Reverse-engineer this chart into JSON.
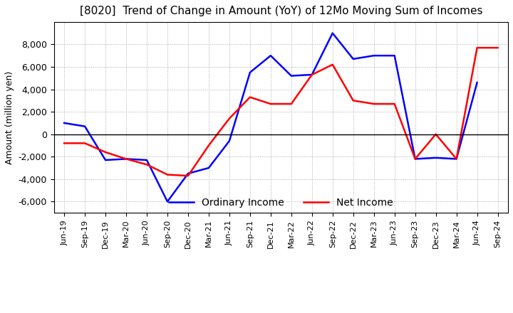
{
  "title": "[8020]  Trend of Change in Amount (YoY) of 12Mo Moving Sum of Incomes",
  "ylabel": "Amount (million yen)",
  "ylim": [
    -7000,
    10000
  ],
  "yticks": [
    -6000,
    -4000,
    -2000,
    0,
    2000,
    4000,
    6000,
    8000
  ],
  "x_labels": [
    "Jun-19",
    "Sep-19",
    "Dec-19",
    "Mar-20",
    "Jun-20",
    "Sep-20",
    "Dec-20",
    "Mar-21",
    "Jun-21",
    "Sep-21",
    "Dec-21",
    "Mar-22",
    "Jun-22",
    "Sep-22",
    "Dec-22",
    "Mar-23",
    "Jun-23",
    "Sep-23",
    "Dec-23",
    "Mar-24",
    "Jun-24",
    "Sep-24"
  ],
  "ordinary_income": [
    1000,
    700,
    -2300,
    -2200,
    -2300,
    -6000,
    -3500,
    -3000,
    -600,
    5500,
    7000,
    5200,
    5300,
    9000,
    6700,
    7000,
    7000,
    -2200,
    -2100,
    -2200,
    4600,
    null
  ],
  "net_income": [
    -800,
    -800,
    -1600,
    -2200,
    -2700,
    -3600,
    -3700,
    -1000,
    1400,
    3300,
    2700,
    2700,
    5300,
    6200,
    3000,
    2700,
    2700,
    -2200,
    0,
    -2200,
    7700,
    7700
  ],
  "ordinary_income_color": "#0000ff",
  "net_income_color": "#ff0000",
  "background_color": "#ffffff",
  "grid_color": "#aaaaaa",
  "title_fontsize": 11,
  "axis_fontsize": 9,
  "legend_fontsize": 10
}
